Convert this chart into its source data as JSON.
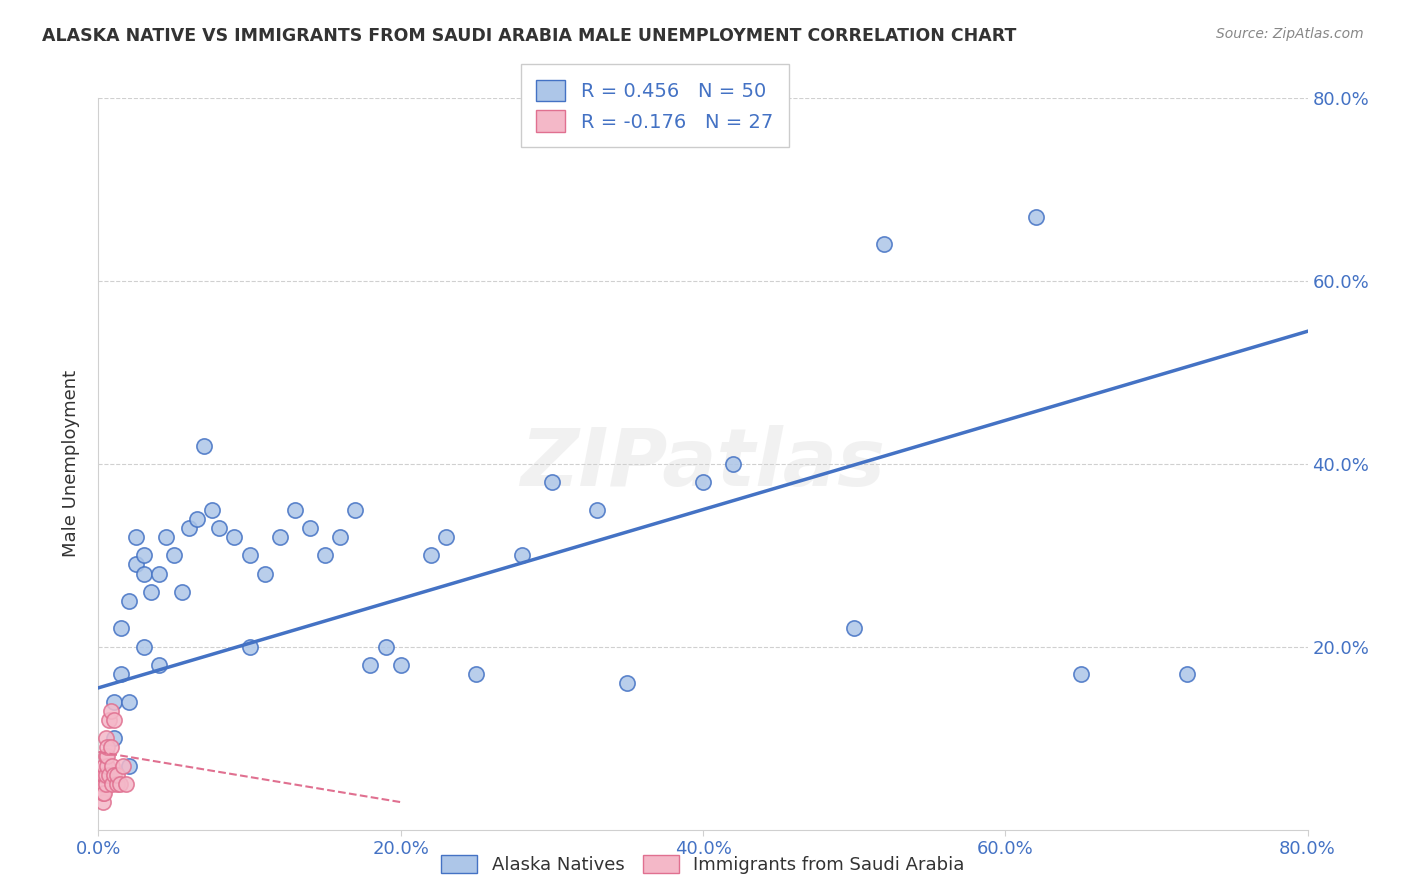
{
  "title": "ALASKA NATIVE VS IMMIGRANTS FROM SAUDI ARABIA MALE UNEMPLOYMENT CORRELATION CHART",
  "source": "Source: ZipAtlas.com",
  "ylabel": "Male Unemployment",
  "xlim": [
    0.0,
    0.8
  ],
  "ylim": [
    0.0,
    0.8
  ],
  "xtick_labels": [
    "0.0%",
    "20.0%",
    "40.0%",
    "60.0%",
    "80.0%"
  ],
  "xtick_vals": [
    0.0,
    0.2,
    0.4,
    0.6,
    0.8
  ],
  "ytick_labels": [
    "80.0%",
    "60.0%",
    "40.0%",
    "20.0%"
  ],
  "ytick_vals": [
    0.8,
    0.6,
    0.4,
    0.2
  ],
  "alaska_native_x": [
    0.01,
    0.01,
    0.015,
    0.015,
    0.02,
    0.02,
    0.02,
    0.025,
    0.025,
    0.03,
    0.03,
    0.03,
    0.035,
    0.04,
    0.04,
    0.045,
    0.05,
    0.055,
    0.06,
    0.065,
    0.07,
    0.075,
    0.08,
    0.09,
    0.1,
    0.1,
    0.11,
    0.12,
    0.13,
    0.14,
    0.15,
    0.16,
    0.17,
    0.18,
    0.19,
    0.2,
    0.22,
    0.23,
    0.25,
    0.28,
    0.3,
    0.33,
    0.35,
    0.4,
    0.42,
    0.5,
    0.52,
    0.62,
    0.65,
    0.72
  ],
  "alaska_native_y": [
    0.1,
    0.14,
    0.17,
    0.22,
    0.07,
    0.14,
    0.25,
    0.29,
    0.32,
    0.2,
    0.28,
    0.3,
    0.26,
    0.18,
    0.28,
    0.32,
    0.3,
    0.26,
    0.33,
    0.34,
    0.42,
    0.35,
    0.33,
    0.32,
    0.2,
    0.3,
    0.28,
    0.32,
    0.35,
    0.33,
    0.3,
    0.32,
    0.35,
    0.18,
    0.2,
    0.18,
    0.3,
    0.32,
    0.17,
    0.3,
    0.38,
    0.35,
    0.16,
    0.38,
    0.4,
    0.22,
    0.64,
    0.67,
    0.17,
    0.17
  ],
  "alaska_line_x0": 0.0,
  "alaska_line_y0": 0.155,
  "alaska_line_x1": 0.8,
  "alaska_line_y1": 0.545,
  "saudi_x": [
    0.003,
    0.003,
    0.003,
    0.003,
    0.004,
    0.004,
    0.004,
    0.005,
    0.005,
    0.005,
    0.005,
    0.006,
    0.006,
    0.006,
    0.007,
    0.007,
    0.008,
    0.008,
    0.009,
    0.009,
    0.01,
    0.01,
    0.012,
    0.012,
    0.014,
    0.016,
    0.018
  ],
  "saudi_y": [
    0.03,
    0.04,
    0.05,
    0.06,
    0.04,
    0.06,
    0.07,
    0.05,
    0.06,
    0.08,
    0.1,
    0.07,
    0.08,
    0.09,
    0.06,
    0.12,
    0.09,
    0.13,
    0.05,
    0.07,
    0.06,
    0.12,
    0.05,
    0.06,
    0.05,
    0.07,
    0.05
  ],
  "saudi_line_x0": 0.0,
  "saudi_line_y0": 0.085,
  "saudi_line_x1": 0.2,
  "saudi_line_y1": 0.03,
  "alaska_R": 0.456,
  "alaska_N": 50,
  "saudi_R": -0.176,
  "saudi_N": 27,
  "alaska_fill_color": "#adc6e8",
  "alaska_edge_color": "#4472c4",
  "alaska_line_color": "#4472c4",
  "saudi_fill_color": "#f4b8c8",
  "saudi_edge_color": "#e07090",
  "saudi_line_color": "#e07090",
  "watermark": "ZIPatlas",
  "background_color": "#ffffff",
  "grid_color": "#d0d0d0",
  "legend_text_color": "#4472c4",
  "title_color": "#333333",
  "axis_label_color": "#4472c4",
  "source_color": "#888888"
}
